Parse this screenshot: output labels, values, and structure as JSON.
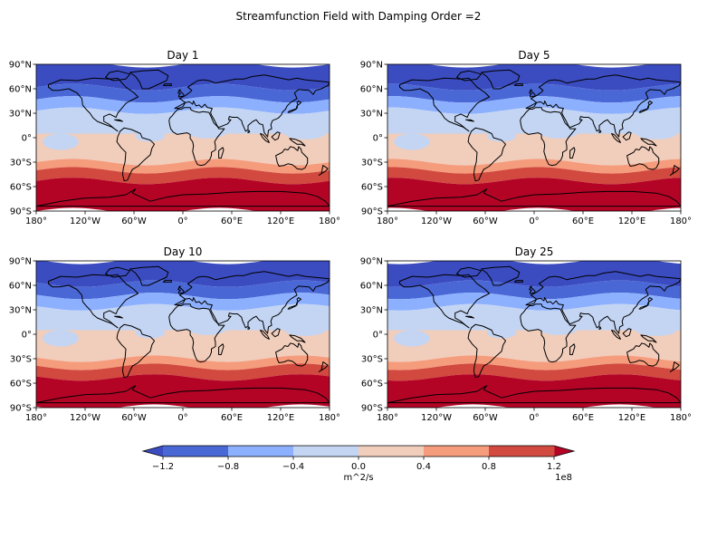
{
  "figure": {
    "suptitle": "Streamfunction Field with Damping Order =2"
  },
  "chart_data": {
    "type": "heatmap",
    "panels": [
      {
        "title": "Day 1"
      },
      {
        "title": "Day 5"
      },
      {
        "title": "Day 10"
      },
      {
        "title": "Day 25"
      }
    ],
    "x_ticks": [
      "180°",
      "120°W",
      "60°W",
      "0°",
      "60°E",
      "120°E",
      "180°"
    ],
    "y_ticks": [
      "90°N",
      "60°N",
      "30°N",
      "0°",
      "30°S",
      "60°S",
      "90°S"
    ],
    "xlim": [
      -180,
      180
    ],
    "ylim": [
      -90,
      90
    ],
    "levels": [
      -1.2,
      -0.8,
      -0.4,
      0.0,
      0.4,
      0.8,
      1.2
    ],
    "level_scale": "1e8",
    "level_colors": [
      "#4a67d6",
      "#8db0fe",
      "#c4d5f3",
      "#f1cdbb",
      "#f59c7d",
      "#d1493f",
      "#b40426"
    ],
    "underflow_color": "#3b4cc0",
    "overflow_color": "#b40426",
    "colorbar": {
      "ticks": [
        "−1.2",
        "−0.8",
        "−0.4",
        "0.0",
        "0.4",
        "0.8",
        "1.2"
      ],
      "label": "m^2/s",
      "offset": "1e8"
    },
    "zonal_bands_lat": [
      {
        "lat_from": 90,
        "lat_to": 62,
        "color": "#3b4cc0"
      },
      {
        "lat_from": 62,
        "lat_to": 47,
        "color": "#4a67d6"
      },
      {
        "lat_from": 47,
        "lat_to": 33,
        "color": "#8db0fe"
      },
      {
        "lat_from": 33,
        "lat_to": 5,
        "color": "#c4d5f3"
      },
      {
        "lat_from": 5,
        "lat_to": -30,
        "color": "#f1cdbb"
      },
      {
        "lat_from": -30,
        "lat_to": -40,
        "color": "#f59c7d"
      },
      {
        "lat_from": -40,
        "lat_to": -53,
        "color": "#d1493f"
      },
      {
        "lat_from": -53,
        "lat_to": -90,
        "color": "#b40426"
      }
    ]
  }
}
